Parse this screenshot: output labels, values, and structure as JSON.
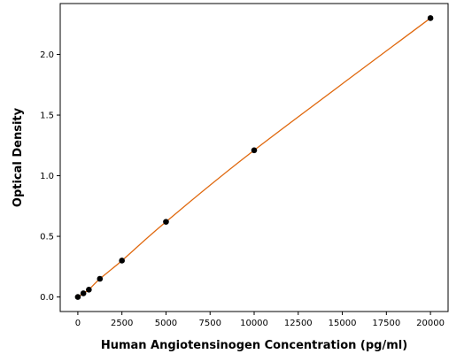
{
  "chart_data": {
    "type": "scatter",
    "title": "",
    "xlabel": "Human Angiotensinogen Concentration (pg/ml)",
    "ylabel": "Optical Density",
    "xlim": [
      -1000,
      21000
    ],
    "ylim": [
      -0.12,
      2.42
    ],
    "xticks": [
      0,
      2500,
      5000,
      7500,
      10000,
      12500,
      15000,
      17500,
      20000
    ],
    "yticks": [
      0.0,
      0.5,
      1.0,
      1.5,
      2.0
    ],
    "xtick_labels": [
      "0",
      "2500",
      "5000",
      "7500",
      "10000",
      "12500",
      "15000",
      "17500",
      "20000"
    ],
    "ytick_labels": [
      "0.0",
      "0.5",
      "1.0",
      "1.5",
      "2.0"
    ],
    "grid": false,
    "legend": false,
    "series": [
      {
        "x": [
          0,
          312.5,
          625,
          1250,
          2500,
          5000,
          10000,
          20000
        ],
        "y": [
          0.0,
          0.03,
          0.06,
          0.15,
          0.3,
          0.62,
          1.21,
          2.3
        ],
        "marker_color": "#000000",
        "fit_line_color": "#e0690f"
      }
    ]
  }
}
